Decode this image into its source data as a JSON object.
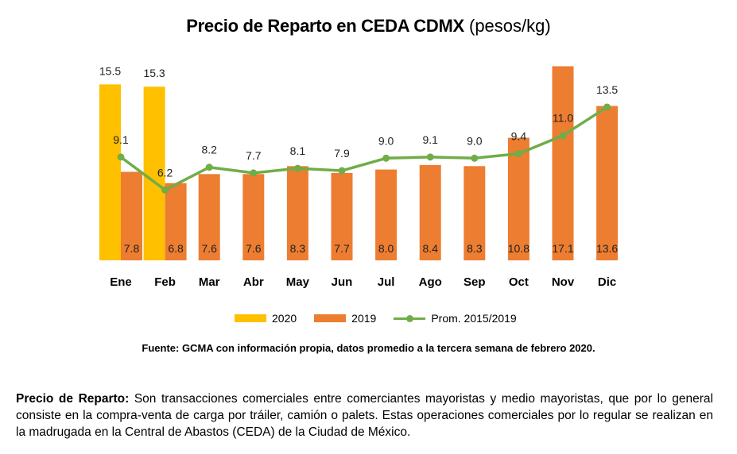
{
  "title": {
    "main": "Precio de Reparto en CEDA CDMX",
    "unit": "(pesos/kg)"
  },
  "chart_data": {
    "type": "bar",
    "title": "Precio de Reparto en CEDA CDMX (pesos/kg)",
    "categories": [
      "Ene",
      "Feb",
      "Mar",
      "Abr",
      "May",
      "Jun",
      "Jul",
      "Ago",
      "Sep",
      "Oct",
      "Nov",
      "Dic"
    ],
    "series": [
      {
        "name": "2020",
        "type": "bar",
        "color": "#ffc000",
        "values": [
          15.5,
          15.3,
          null,
          null,
          null,
          null,
          null,
          null,
          null,
          null,
          null,
          null
        ]
      },
      {
        "name": "2019",
        "type": "bar",
        "color": "#ed7d31",
        "values": [
          7.8,
          6.8,
          7.6,
          7.6,
          8.3,
          7.7,
          8.0,
          8.4,
          8.3,
          10.8,
          17.1,
          13.6
        ]
      },
      {
        "name": "Prom. 2015/2019",
        "type": "line",
        "color": "#70ad47",
        "values": [
          9.1,
          6.2,
          8.2,
          7.7,
          8.1,
          7.9,
          9.0,
          9.1,
          9.0,
          9.4,
          11.0,
          13.5
        ]
      }
    ],
    "legend": "bottom",
    "grid": false
  },
  "labels": {
    "bar2020": [
      "15.5",
      "15.3"
    ],
    "bar2019": [
      "7.8",
      "6.8",
      "7.6",
      "7.6",
      "8.3",
      "7.7",
      "8.0",
      "8.4",
      "8.3",
      "10.8",
      "17.1",
      "13.6"
    ],
    "line": [
      "9.1",
      "6.2",
      "8.2",
      "7.7",
      "8.1",
      "7.9",
      "9.0",
      "9.1",
      "9.0",
      "9.4",
      "11.0",
      "13.5"
    ]
  },
  "legend": {
    "s2020": "2020",
    "s2019": "2019",
    "avg": "Prom. 2015/2019"
  },
  "source": "Fuente: GCMA con información propia, datos promedio a la tercera semana de febrero 2020.",
  "definition": {
    "term": "Precio de Reparto:",
    "text": " Son transacciones comerciales entre comerciantes mayoristas y medio mayoristas, que por lo general consiste en la compra-venta de carga por tráiler, camión o palets. Estas operaciones comerciales por lo regular se realizan en la madrugada en la Central de Abastos (CEDA) de la Ciudad de México."
  }
}
